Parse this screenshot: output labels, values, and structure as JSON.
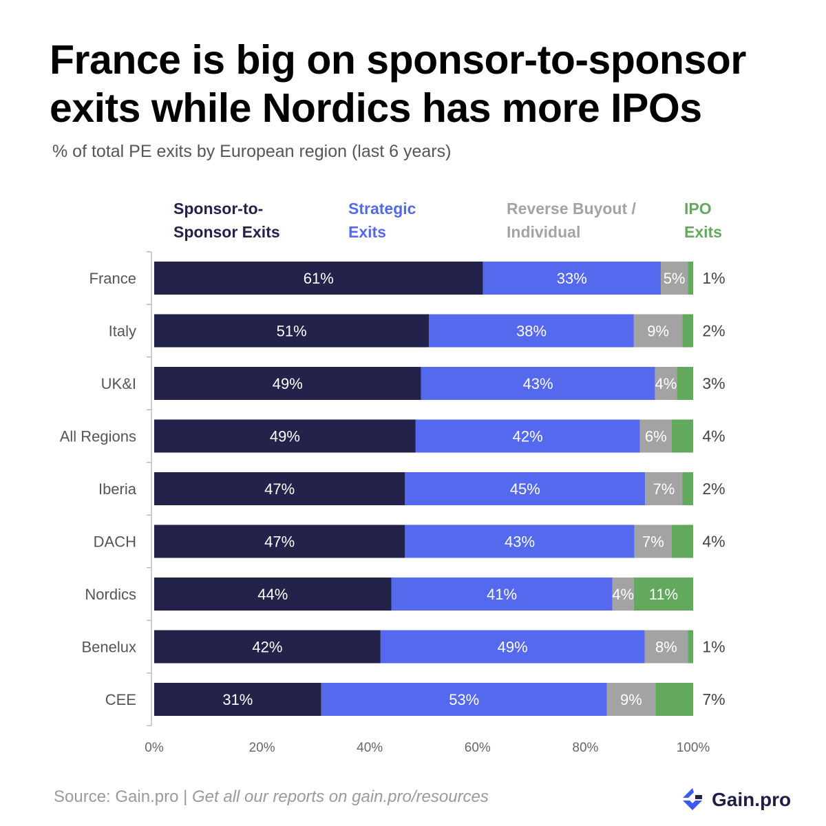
{
  "header": {
    "title": "France is big on sponsor-to-sponsor exits while Nordics has more IPOs",
    "subtitle": "% of total PE exits by European region (last 6 years)"
  },
  "footer": {
    "source": "Source: Gain.pro",
    "separator": " | ",
    "cta": "Get all our reports on gain.pro/resources",
    "logo_text": "Gain.pro"
  },
  "colors": {
    "sponsor": "#23224a",
    "strategic": "#5469ed",
    "rbo": "#a3a3a3",
    "ipo": "#62a85d"
  },
  "chart_data": {
    "type": "bar",
    "orientation": "horizontal",
    "stacked": true,
    "title": "France is big on sponsor-to-sponsor exits while Nordics has more IPOs",
    "subtitle": "% of total PE exits by European region (last 6 years)",
    "categories": [
      "France",
      "Italy",
      "UK&I",
      "All  Regions",
      "Iberia",
      "DACH",
      "Nordics",
      "Benelux",
      "CEE"
    ],
    "series": [
      {
        "name": "Sponsor-to-Sponsor Exits",
        "legend_lines": [
          "Sponsor-to-",
          "Sponsor Exits"
        ],
        "color": "#23224a",
        "values": [
          61,
          51,
          49,
          49,
          47,
          47,
          44,
          42,
          31
        ]
      },
      {
        "name": "Strategic Exits",
        "legend_lines": [
          "Strategic",
          "Exits"
        ],
        "color": "#5469ed",
        "values": [
          33,
          38,
          43,
          42,
          45,
          43,
          41,
          49,
          53
        ]
      },
      {
        "name": "Reverse Buyout / Individual",
        "legend_lines": [
          "Reverse Buyout /",
          "Individual"
        ],
        "color": "#a3a3a3",
        "values": [
          5,
          9,
          4,
          6,
          7,
          7,
          4,
          8,
          9
        ]
      },
      {
        "name": "IPO Exits",
        "legend_lines": [
          "IPO",
          "Exits"
        ],
        "color": "#62a85d",
        "values": [
          1,
          2,
          3,
          4,
          2,
          4,
          11,
          1,
          7
        ]
      }
    ],
    "value_suffix": "%",
    "xlim": [
      0,
      100
    ],
    "xticks": [
      "0%",
      "20%",
      "40%",
      "60%",
      "80%",
      "100%"
    ],
    "grid": false,
    "legend_position": "top"
  }
}
